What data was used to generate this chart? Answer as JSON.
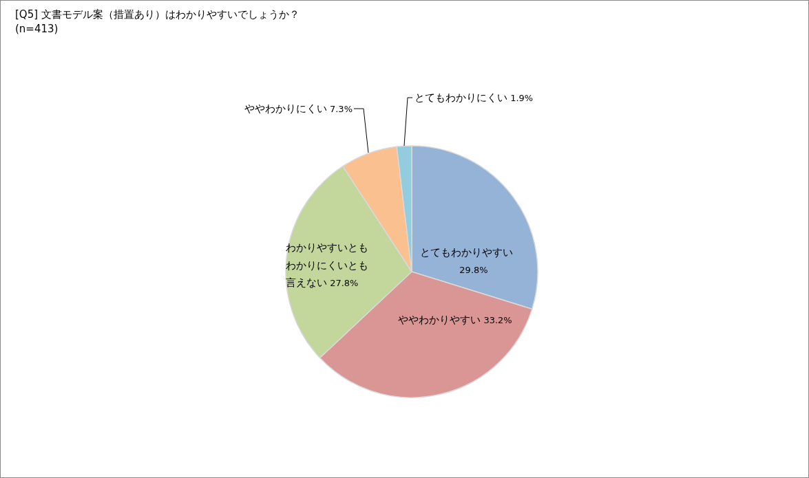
{
  "chart_data": {
    "type": "pie",
    "title": "[Q5] 文書モデル案（措置あり）はわかりやすいでしょうか？",
    "subtitle": "(n=413)",
    "categories": [
      "とてもわかりやすい",
      "ややわかりやすい",
      "わかりやすいともわかりにくいとも言えない",
      "ややわかりにくい",
      "とてもわかりにくい"
    ],
    "values": [
      29.8,
      33.2,
      27.8,
      7.3,
      1.9
    ],
    "value_labels": [
      "29.8%",
      "33.2%",
      "27.8%",
      "7.3%",
      "1.9%"
    ],
    "colors": [
      "#95b3d7",
      "#d99694",
      "#c3d69b",
      "#fac090",
      "#93cddd"
    ]
  }
}
